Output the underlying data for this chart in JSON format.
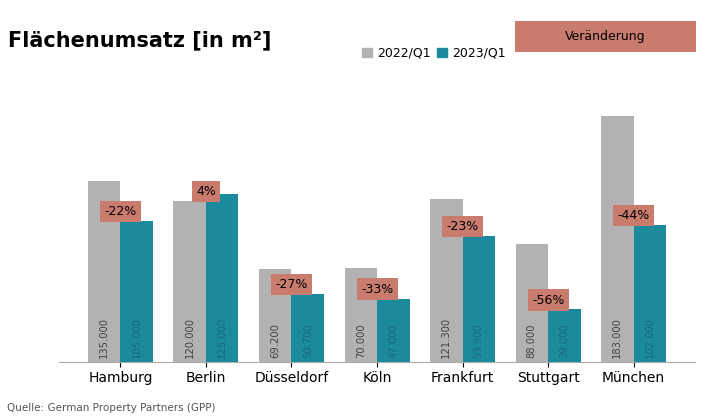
{
  "title": "Flächenumsatz [in m²]",
  "categories": [
    "Hamburg",
    "Berlin",
    "Düsseldorf",
    "Köln",
    "Frankfurt",
    "Stuttgart",
    "München"
  ],
  "values_2022": [
    135000,
    120000,
    69200,
    70000,
    121300,
    88000,
    183000
  ],
  "values_2023": [
    105000,
    125000,
    50700,
    47000,
    93900,
    39000,
    102000
  ],
  "changes": [
    "-22%",
    "4%",
    "-27%",
    "-33%",
    "-23%",
    "-56%",
    "-44%"
  ],
  "bar_color_2022": "#b2b2b2",
  "bar_color_2023": "#1b8a9c",
  "change_box_color": "#c97b6e",
  "change_text_color": "#000000",
  "value_labels_2022": [
    "135.000",
    "120.000",
    "69.200",
    "70.000",
    "121.300",
    "88.000",
    "183.000"
  ],
  "value_labels_2023": [
    "105.000",
    "125.000",
    "50.700",
    "47.000",
    "93.900",
    "39.000",
    "102.000"
  ],
  "legend_2022": "2022/Q1",
  "legend_2023": "2023/Q1",
  "legend_change": "Veränderung",
  "source": "Quelle: German Property Partners (GPP)",
  "ylim": [
    0,
    215000
  ],
  "background_color": "#ffffff",
  "title_fontsize": 15,
  "bar_width": 0.38,
  "value_fontsize": 7.2,
  "change_fontsize": 9
}
